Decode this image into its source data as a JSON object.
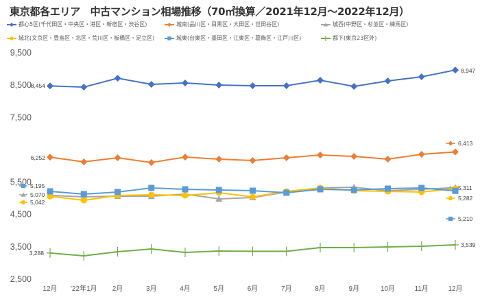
{
  "chart_data": {
    "type": "line",
    "title": "東京都各エリア　中古マンション相場推移（70㎡換算／2021年12月～2022年12月）",
    "xlabel": "",
    "ylabel": "",
    "ylim": [
      2500,
      9500
    ],
    "yticks": [
      "2,500",
      "3,500",
      "4,500",
      "5,500",
      "7,500",
      "8,500",
      "9,500"
    ],
    "ytick_values": [
      2500,
      3500,
      4500,
      5500,
      7500,
      8500,
      9500
    ],
    "grid": false,
    "legend_position": "top",
    "categories": [
      "12月",
      "'22年1月",
      "2月",
      "3月",
      "4月",
      "5月",
      "6月",
      "7月",
      "8月",
      "9月",
      "10月",
      "11月",
      "12月"
    ],
    "series": [
      {
        "name": "都心5区(千代田区・中央区・港区・新宿区・渋谷区)",
        "color": "#4472C4",
        "marker": "diamond",
        "values": [
          8454,
          8418,
          8694,
          8503,
          8546,
          8482,
          8461,
          8461,
          8630,
          8440,
          8609,
          8736,
          8947
        ],
        "start_label": "8,454",
        "end_label": "8,947"
      },
      {
        "name": "城南(品川区・目黒区・大田区・世田谷区)",
        "color": "#ED7D31",
        "marker": "diamond",
        "values": [
          6252,
          6106,
          6234,
          6085,
          6255,
          6191,
          6149,
          6234,
          6319,
          6276,
          6191,
          6340,
          6413
        ],
        "start_label": "6,252",
        "end_label": "6,413"
      },
      {
        "name": "城西(中野区・杉並区・練馬区)",
        "color": "#A5A5A5",
        "marker": "triangle",
        "values": [
          5070,
          5024,
          5046,
          5046,
          5109,
          4961,
          5003,
          5173,
          5300,
          5321,
          5215,
          5258,
          5311
        ],
        "start_label": "5,070",
        "end_label": "5,311"
      },
      {
        "name": "城北(文京区・豊島区・北区・荒川区・板橋区・足立区)",
        "color": "#FFC000",
        "marker": "circle",
        "values": [
          5042,
          4918,
          5067,
          5088,
          5067,
          5152,
          5024,
          5194,
          5300,
          5215,
          5194,
          5173,
          5282
        ],
        "start_label": "5,042",
        "end_label": "5,282"
      },
      {
        "name": "城東(台東区・墨田区・江東区・葛飾区・江戸川区)",
        "color": "#5B9BD5",
        "marker": "square",
        "values": [
          5195,
          5109,
          5173,
          5300,
          5258,
          5236,
          5215,
          5152,
          5258,
          5236,
          5279,
          5300,
          5210
        ],
        "start_label": "5,195",
        "end_label": "5,210"
      },
      {
        "name": "都下(東京23区外)",
        "color": "#70AD47",
        "marker": "plus",
        "values": [
          3288,
          3200,
          3327,
          3412,
          3306,
          3349,
          3340,
          3340,
          3455,
          3455,
          3476,
          3497,
          3539
        ],
        "start_label": "3,288",
        "end_label": "3,539"
      }
    ]
  }
}
